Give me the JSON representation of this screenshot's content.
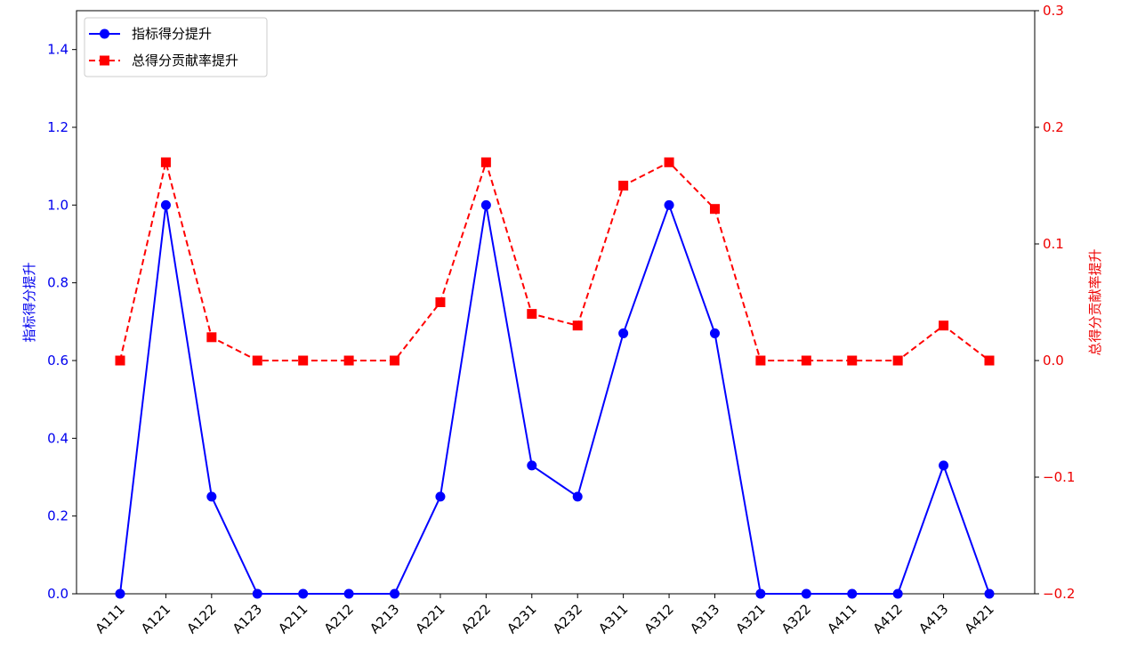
{
  "chart_data": {
    "type": "line",
    "categories": [
      "A111",
      "A121",
      "A122",
      "A123",
      "A211",
      "A212",
      "A213",
      "A221",
      "A222",
      "A231",
      "A232",
      "A311",
      "A312",
      "A313",
      "A321",
      "A322",
      "A411",
      "A412",
      "A413",
      "A421"
    ],
    "series": [
      {
        "name": "指标得分提升",
        "axis": "left",
        "color": "#0000ff",
        "line_style": "solid",
        "marker": "circle",
        "values": [
          0,
          1.0,
          0.25,
          0,
          0,
          0,
          0,
          0.25,
          1.0,
          0.33,
          0.25,
          0.67,
          1.0,
          0.67,
          0,
          0,
          0,
          0,
          0.33,
          0
        ]
      },
      {
        "name": "总得分贡献率提升",
        "axis": "right",
        "color": "#ff0000",
        "line_style": "dashed",
        "marker": "square",
        "values": [
          0,
          0.17,
          0.02,
          0,
          0,
          0,
          0,
          0.05,
          0.17,
          0.04,
          0.03,
          0.15,
          0.17,
          0.13,
          0,
          0,
          0,
          0,
          0.03,
          0
        ]
      }
    ],
    "ylabel_left": "指标得分提升",
    "ylabel_right": "总得分贡献率提升",
    "ylim_left": [
      0,
      1.5
    ],
    "ylim_right": [
      -0.2,
      0.3
    ],
    "yticks_left": [
      "0.0",
      "0.2",
      "0.4",
      "0.6",
      "0.8",
      "1.0",
      "1.2",
      "1.4"
    ],
    "yticks_left_values": [
      0,
      0.2,
      0.4,
      0.6,
      0.8,
      1.0,
      1.2,
      1.4
    ],
    "yticks_right": [
      "−0.2",
      "−0.1",
      "0.0",
      "0.1",
      "0.2",
      "0.3"
    ],
    "yticks_right_values": [
      -0.2,
      -0.1,
      0.0,
      0.1,
      0.2,
      0.3
    ],
    "legend_position": "upper-left",
    "grid": false,
    "x_tick_rotation_deg": 45
  }
}
